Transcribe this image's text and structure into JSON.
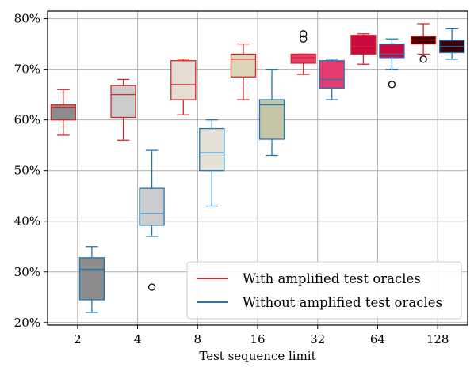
{
  "chart_data": {
    "type": "box",
    "xlabel": "Test sequence limit",
    "ylabel": "",
    "categories": [
      "2",
      "4",
      "8",
      "16",
      "32",
      "64",
      "128"
    ],
    "yticks": [
      20,
      30,
      40,
      50,
      60,
      70,
      80
    ],
    "ytick_labels": [
      "20%",
      "30%",
      "40%",
      "50%",
      "60%",
      "70%",
      "80%"
    ],
    "ylim": [
      19.5,
      81.5
    ],
    "grid": true,
    "legend_position": "lower-right",
    "series": [
      {
        "name": "With amplified test oracles",
        "edge_color": "#d62728",
        "boxes": [
          {
            "whislo": 57,
            "q1": 60,
            "med": 62.5,
            "q3": 63,
            "whishi": 66,
            "fliers": [],
            "fill": "#8c8c8c"
          },
          {
            "whislo": 56,
            "q1": 60.5,
            "med": 65,
            "q3": 66.8,
            "whishi": 68,
            "fliers": [],
            "fill": "#cccccc"
          },
          {
            "whislo": 61,
            "q1": 64,
            "med": 67,
            "q3": 71.7,
            "whishi": 72,
            "fliers": [],
            "fill": "#e3ddd3"
          },
          {
            "whislo": 64,
            "q1": 68.5,
            "med": 72,
            "q3": 73,
            "whishi": 75,
            "fliers": [],
            "fill": "#dcd6b6"
          },
          {
            "whislo": 69,
            "q1": 71.2,
            "med": 72.3,
            "q3": 73,
            "whishi": 73,
            "fliers": [
              76,
              77
            ],
            "fill": "#e73c70"
          },
          {
            "whislo": 71,
            "q1": 73,
            "med": 74.5,
            "q3": 76.7,
            "whishi": 77,
            "fliers": [],
            "fill": "#c9093f"
          },
          {
            "whislo": 73,
            "q1": 75,
            "med": 75.8,
            "q3": 76.5,
            "whishi": 79,
            "fliers": [
              72
            ],
            "fill": "#3d0008"
          }
        ]
      },
      {
        "name": "Without amplified test oracles",
        "edge_color": "#1f77b4",
        "boxes": [
          {
            "whislo": 22,
            "q1": 24.5,
            "med": 30.5,
            "q3": 32.8,
            "whishi": 35,
            "fliers": [],
            "fill": "#8c8c8c"
          },
          {
            "whislo": 37,
            "q1": 39.2,
            "med": 41.5,
            "q3": 46.5,
            "whishi": 54,
            "fliers": [
              27
            ],
            "fill": "#cccccc"
          },
          {
            "whislo": 43,
            "q1": 50,
            "med": 53.5,
            "q3": 58.3,
            "whishi": 60,
            "fliers": [],
            "fill": "#e3e0d6"
          },
          {
            "whislo": 53,
            "q1": 56.2,
            "med": 63,
            "q3": 64,
            "whishi": 70,
            "fliers": [],
            "fill": "#c6c6a6"
          },
          {
            "whislo": 64,
            "q1": 66.3,
            "med": 68,
            "q3": 71.7,
            "whishi": 72,
            "fliers": [],
            "fill": "#e73c70"
          },
          {
            "whislo": 70,
            "q1": 72.3,
            "med": 73,
            "q3": 75,
            "whishi": 76,
            "fliers": [
              67
            ],
            "fill": "#c9093f"
          },
          {
            "whislo": 72,
            "q1": 73.3,
            "med": 74.5,
            "q3": 75.7,
            "whishi": 78,
            "fliers": [],
            "fill": "#3d0008"
          }
        ]
      }
    ]
  }
}
